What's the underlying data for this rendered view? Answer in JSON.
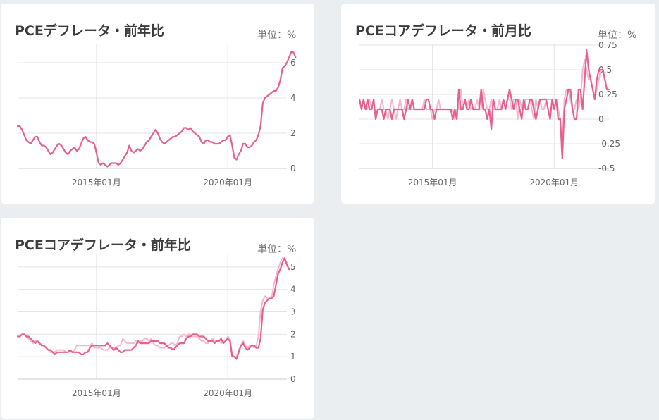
{
  "colors": {
    "line": "#e8608f",
    "line_light": "#f5b7cb",
    "grid": "#e4e4e4",
    "axis": "#cccccc",
    "page_bg": "#ebeef1",
    "card_bg": "#ffffff"
  },
  "unit_label": "単位：%",
  "x_ticks": [
    "2015年01月",
    "2020年01月"
  ],
  "chart_data": [
    {
      "type": "line",
      "title": "PCEデフレータ・前年比",
      "x_start": "2012-01",
      "x_end": "2022-04",
      "ylim": [
        0,
        7
      ],
      "y_ticks": [
        "0",
        "2",
        "4",
        "6"
      ],
      "series": [
        {
          "values": [
            2.4,
            2.4,
            2.2,
            1.9,
            1.6,
            1.5,
            1.4,
            1.6,
            1.8,
            1.8,
            1.5,
            1.3,
            1.3,
            1.2,
            1.0,
            0.8,
            0.9,
            1.1,
            1.3,
            1.4,
            1.3,
            1.1,
            0.9,
            0.8,
            1.0,
            1.1,
            1.2,
            1.0,
            1.1,
            1.4,
            1.7,
            1.8,
            1.6,
            1.5,
            1.5,
            1.4,
            0.9,
            0.3,
            0.2,
            0.3,
            0.2,
            0.1,
            0.2,
            0.3,
            0.3,
            0.3,
            0.2,
            0.3,
            0.5,
            0.7,
            0.9,
            1.3,
            1.0,
            0.9,
            1.0,
            1.1,
            1.0,
            1.1,
            1.3,
            1.5,
            1.6,
            1.8,
            2.0,
            2.2,
            2.0,
            1.7,
            1.5,
            1.4,
            1.5,
            1.6,
            1.7,
            1.8,
            1.8,
            1.9,
            2.0,
            2.1,
            2.3,
            2.3,
            2.2,
            2.3,
            2.1,
            2.0,
            1.9,
            1.8,
            1.5,
            1.4,
            1.6,
            1.6,
            1.5,
            1.5,
            1.4,
            1.4,
            1.4,
            1.5,
            1.6,
            1.6,
            1.8,
            1.9,
            1.3,
            0.6,
            0.5,
            0.8,
            1.0,
            1.4,
            1.4,
            1.2,
            1.2,
            1.3,
            1.5,
            1.6,
            1.9,
            2.4,
            3.7,
            4.0,
            4.1,
            4.2,
            4.3,
            4.4,
            4.4,
            4.6,
            5.0,
            5.7,
            5.8,
            6.0,
            6.3,
            6.6,
            6.6,
            6.3
          ]
        }
      ]
    },
    {
      "type": "line",
      "title": "PCEコアデフレータ・前月比",
      "x_start": "2012-01",
      "x_end": "2022-04",
      "ylim": [
        -0.5,
        0.75
      ],
      "y_ticks": [
        "0.75",
        "0.5",
        "0.25",
        "0",
        "-0.25",
        "-0.5"
      ],
      "series": [
        {
          "values": [
            0.2,
            0.1,
            0.2,
            0.1,
            0.1,
            0.2,
            0.1,
            0.2,
            0.0,
            0.1,
            0.1,
            0.2,
            0.1,
            0.1,
            0.0,
            0.1,
            0.2,
            0.1,
            0.0,
            0.1,
            0.2,
            0.1,
            0.1,
            0.2,
            0.1,
            0.1,
            0.1,
            0.1,
            0.1,
            0.1,
            0.1,
            0.1,
            0.2,
            0.1,
            0.1,
            0.1,
            0.0,
            0.1,
            0.1,
            0.2,
            0.1,
            0.1,
            0.1,
            0.1,
            0.1,
            0.1,
            0.1,
            0.0,
            0.1,
            0.1,
            0.3,
            0.1,
            0.2,
            0.1,
            0.2,
            0.1,
            0.1,
            0.1,
            0.2,
            0.1,
            0.1,
            0.3,
            0.2,
            0.1,
            0.1,
            0.2,
            0.1,
            0.1,
            0.1,
            0.2,
            0.1,
            0.2,
            0.1,
            0.2,
            0.2,
            0.1,
            0.2,
            0.2,
            0.0,
            0.2,
            0.1,
            0.1,
            0.2,
            0.2,
            0.2,
            0.1,
            0.0,
            0.2,
            0.1,
            0.2,
            0.1,
            0.1,
            0.2,
            0.2,
            0.2,
            0.2,
            0.1,
            0.2,
            0.1,
            0.0,
            -0.3,
            0.2,
            0.3,
            0.3,
            0.2,
            0.1,
            0.1,
            0.2,
            0.1,
            0.2,
            0.5,
            0.6,
            0.5,
            0.4,
            0.4,
            0.3,
            0.2,
            0.3,
            0.4,
            0.5,
            0.5,
            0.4,
            0.3,
            0.3
          ],
          "style": "light"
        },
        {
          "values": [
            0.2,
            0.1,
            0.2,
            0.1,
            0.2,
            0.1,
            0.1,
            0.2,
            0.0,
            0.1,
            0.1,
            0.1,
            0.0,
            0.1,
            0.1,
            0.1,
            0.0,
            0.1,
            0.1,
            0.1,
            0.1,
            0.1,
            0.0,
            0.1,
            0.2,
            0.1,
            0.2,
            0.1,
            0.1,
            0.1,
            0.1,
            0.1,
            0.1,
            0.2,
            0.2,
            0.1,
            0.1,
            0.0,
            0.1,
            0.1,
            0.1,
            0.1,
            0.1,
            0.1,
            0.1,
            0.1,
            0.0,
            0.1,
            0.0,
            0.3,
            0.1,
            0.1,
            0.2,
            0.1,
            0.1,
            0.2,
            0.1,
            0.1,
            0.1,
            0.1,
            0.3,
            0.1,
            0.1,
            0.0,
            0.1,
            -0.1,
            0.2,
            0.1,
            0.1,
            0.1,
            0.1,
            0.2,
            0.1,
            0.2,
            0.3,
            0.2,
            0.1,
            0.2,
            0.2,
            0.1,
            0.0,
            0.2,
            0.1,
            0.1,
            0.2,
            0.2,
            0.1,
            0.0,
            0.1,
            0.2,
            0.2,
            0.2,
            0.2,
            0.1,
            0.0,
            0.2,
            0.1,
            0.2,
            0.0,
            0.0,
            -0.4,
            0.1,
            0.2,
            0.3,
            0.3,
            0.1,
            0.0,
            0.0,
            0.3,
            0.3,
            0.1,
            0.4,
            0.7,
            0.5,
            0.4,
            0.3,
            0.2,
            0.4,
            0.5,
            0.5,
            0.5,
            0.4,
            0.3,
            0.3
          ]
        }
      ]
    },
    {
      "type": "line",
      "title": "PCEコアデフレータ・前年比",
      "x_start": "2012-01",
      "x_end": "2022-04",
      "ylim": [
        0,
        5.5
      ],
      "y_ticks": [
        "0",
        "1",
        "2",
        "3",
        "4",
        "5"
      ],
      "series": [
        {
          "values": [
            1.9,
            1.9,
            2.0,
            2.0,
            1.9,
            1.8,
            1.7,
            1.6,
            1.7,
            1.7,
            1.6,
            1.5,
            1.5,
            1.4,
            1.3,
            1.2,
            1.2,
            1.2,
            1.3,
            1.3,
            1.3,
            1.3,
            1.2,
            1.2,
            1.3,
            1.2,
            1.3,
            1.5,
            1.5,
            1.5,
            1.5,
            1.5,
            1.5,
            1.5,
            1.6,
            1.4,
            1.4,
            1.4,
            1.4,
            1.3,
            1.3,
            1.3,
            1.4,
            1.4,
            1.4,
            1.4,
            1.5,
            1.5,
            1.8,
            1.7,
            1.6,
            1.6,
            1.6,
            1.6,
            1.7,
            1.6,
            1.7,
            1.7,
            1.8,
            1.8,
            1.7,
            1.8,
            1.6,
            1.5,
            1.5,
            1.4,
            1.4,
            1.4,
            1.5,
            1.5,
            1.6,
            1.6,
            1.5,
            1.6,
            1.9,
            1.9,
            2.0,
            1.9,
            2.0,
            2.0,
            1.9,
            1.9,
            1.9,
            1.8,
            1.7,
            1.7,
            1.6,
            1.6,
            1.7,
            1.8,
            1.7,
            1.7,
            1.7,
            1.6,
            1.7,
            1.7,
            1.9,
            1.8,
            1.1,
            1.0,
            1.0,
            1.3,
            1.5,
            1.7,
            1.5,
            1.4,
            1.5,
            1.5,
            1.4,
            1.5,
            1.9,
            3.0,
            3.5,
            3.7,
            3.6,
            3.6,
            3.6,
            4.2,
            4.6,
            4.9,
            5.2,
            5.4,
            5.3,
            5.2
          ],
          "style": "light"
        },
        {
          "values": [
            1.9,
            1.9,
            2.0,
            2.0,
            1.9,
            1.9,
            1.8,
            1.7,
            1.6,
            1.7,
            1.6,
            1.5,
            1.5,
            1.4,
            1.3,
            1.3,
            1.2,
            1.1,
            1.2,
            1.2,
            1.2,
            1.2,
            1.2,
            1.2,
            1.3,
            1.2,
            1.2,
            1.2,
            1.2,
            1.1,
            1.1,
            1.2,
            1.2,
            1.4,
            1.5,
            1.5,
            1.5,
            1.5,
            1.5,
            1.5,
            1.5,
            1.6,
            1.5,
            1.4,
            1.3,
            1.4,
            1.3,
            1.2,
            1.2,
            1.3,
            1.3,
            1.3,
            1.3,
            1.4,
            1.5,
            1.7,
            1.6,
            1.6,
            1.6,
            1.6,
            1.6,
            1.7,
            1.7,
            1.7,
            1.7,
            1.6,
            1.6,
            1.6,
            1.5,
            1.4,
            1.4,
            1.3,
            1.4,
            1.5,
            1.6,
            1.6,
            1.6,
            1.8,
            1.9,
            1.9,
            2.0,
            2.0,
            2.0,
            1.9,
            1.9,
            1.9,
            1.8,
            1.7,
            1.7,
            1.7,
            1.6,
            1.7,
            1.7,
            1.8,
            1.6,
            1.7,
            1.8,
            1.7,
            1.0,
            1.0,
            0.9,
            1.2,
            1.5,
            1.6,
            1.4,
            1.3,
            1.4,
            1.5,
            1.5,
            1.4,
            1.4,
            1.8,
            3.1,
            3.4,
            3.5,
            3.6,
            3.6,
            3.7,
            4.2,
            4.7,
            4.9,
            5.2,
            5.4,
            5.1,
            4.9
          ]
        }
      ]
    }
  ]
}
